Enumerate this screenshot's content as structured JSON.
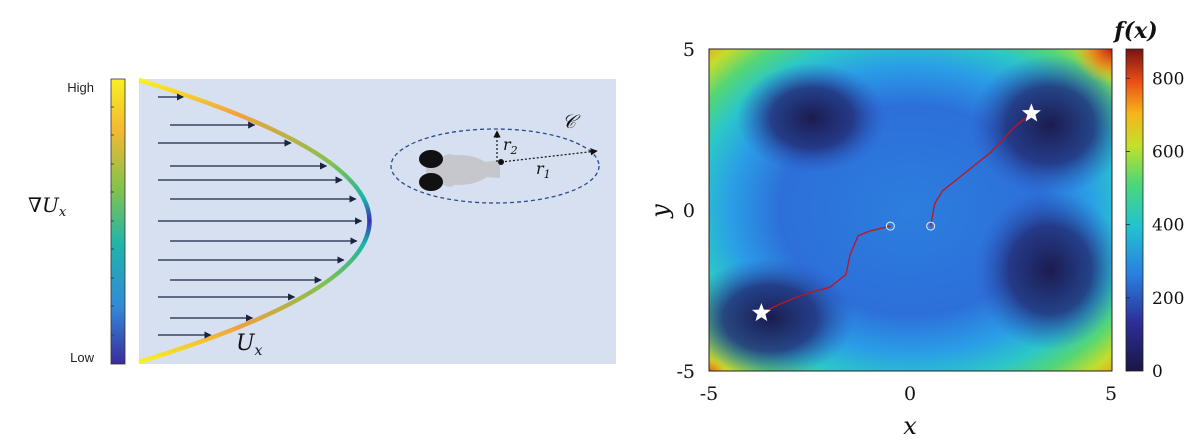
{
  "left_panel": {
    "colorbar": {
      "high_label": "High",
      "low_label": "Low",
      "quantity_label": "∇U",
      "quantity_sub": "x"
    },
    "profile_label": "U",
    "profile_sub": "x",
    "ellipse_label": "𝒞",
    "r1_label": "r",
    "r1_sub": "1",
    "r2_label": "r",
    "r2_sub": "2",
    "background_color": "#d6e0f0",
    "arrow_color": "#1a2340"
  },
  "right_panel": {
    "chart_data": {
      "type": "heatmap",
      "xlabel": "x",
      "ylabel": "y",
      "xlim": [
        -5,
        5
      ],
      "ylim": [
        -5,
        5
      ],
      "x_ticks": [
        "-5",
        "0",
        "5"
      ],
      "y_ticks": [
        "5",
        "0",
        "-5"
      ],
      "colorbar": {
        "label": "f(x)",
        "range": [
          0,
          880
        ],
        "ticks": [
          "800",
          "600",
          "400",
          "200",
          "0"
        ],
        "tick_values": [
          800,
          600,
          400,
          200,
          0
        ]
      },
      "markers": [
        {
          "kind": "star",
          "x": -3.7,
          "y": -3.2
        },
        {
          "kind": "star",
          "x": 3.0,
          "y": 3.0
        },
        {
          "kind": "circle",
          "x": -0.5,
          "y": -0.5
        },
        {
          "kind": "circle",
          "x": 0.5,
          "y": -0.5
        }
      ],
      "trajectories": [
        {
          "color": "#c0151a",
          "points": [
            [
              -3.7,
              -3.2
            ],
            [
              -3.2,
              -2.9
            ],
            [
              -2.6,
              -2.6
            ],
            [
              -2.0,
              -2.4
            ],
            [
              -1.6,
              -2.0
            ],
            [
              -1.5,
              -1.4
            ],
            [
              -1.3,
              -0.8
            ],
            [
              -1.0,
              -0.65
            ],
            [
              -0.5,
              -0.5
            ]
          ]
        },
        {
          "color": "#c0151a",
          "points": [
            [
              0.5,
              -0.5
            ],
            [
              0.6,
              0.2
            ],
            [
              0.8,
              0.6
            ],
            [
              1.0,
              0.8
            ],
            [
              1.3,
              1.1
            ],
            [
              1.6,
              1.4
            ],
            [
              2.0,
              1.8
            ],
            [
              2.3,
              2.2
            ],
            [
              2.6,
              2.6
            ],
            [
              3.0,
              3.0
            ]
          ]
        }
      ]
    }
  }
}
